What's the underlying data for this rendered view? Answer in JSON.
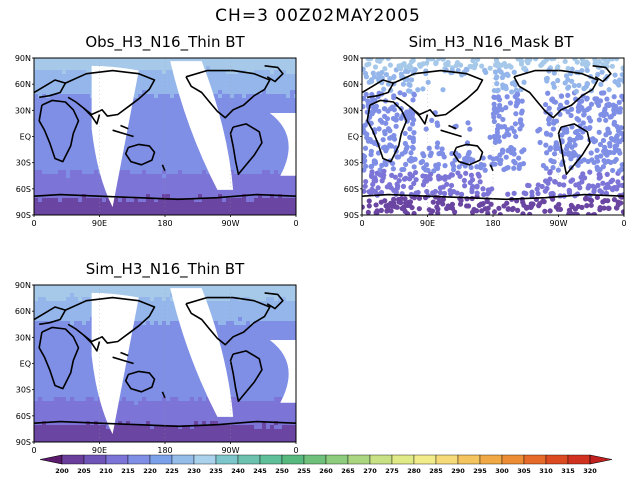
{
  "figure": {
    "title": "CH=3    00Z02MAY2005"
  },
  "panels": [
    {
      "id": "obs",
      "title": "Obs_H3_N16_Thin BT",
      "kind": "thin"
    },
    {
      "id": "sim_mask",
      "title": "Sim_H3_N16_Mask BT",
      "kind": "mask"
    },
    {
      "id": "sim_thin",
      "title": "Sim_H3_N16_Thin BT",
      "kind": "thin"
    }
  ],
  "axes": {
    "lat_labels": [
      "90N",
      "60N",
      "30N",
      "EQ",
      "30S",
      "60S",
      "90S"
    ],
    "lon_labels": [
      "0",
      "90E",
      "180",
      "90W",
      "0"
    ]
  },
  "colorbar": {
    "labels": [
      "200",
      "205",
      "210",
      "215",
      "220",
      "225",
      "230",
      "235",
      "240",
      "245",
      "250",
      "255",
      "260",
      "265",
      "270",
      "275",
      "280",
      "285",
      "290",
      "295",
      "300",
      "305",
      "310",
      "315",
      "320"
    ],
    "colors": [
      "#5b1a6e",
      "#6a3e9b",
      "#6f55b8",
      "#7c74d6",
      "#7f8fe6",
      "#7aa1ea",
      "#94bdea",
      "#aad2ec",
      "#7cc6cc",
      "#6cc2ae",
      "#5fbf98",
      "#58b97f",
      "#6fc07a",
      "#8dcb7d",
      "#a9d67f",
      "#c7e184",
      "#e0ea86",
      "#f2ec8a",
      "#f6d979",
      "#f4c45e",
      "#f0a945",
      "#ec8c35",
      "#e66a29",
      "#dc4a22",
      "#d0321f",
      "#c21f1f"
    ]
  },
  "map_colors": {
    "band_polar_south": "#6a45a2",
    "band_south": "#7c74d6",
    "band_mid": "#7f8fe6",
    "band_north": "#94b6ea",
    "band_arctic": "#a6c9ea",
    "coast": "#000000"
  }
}
